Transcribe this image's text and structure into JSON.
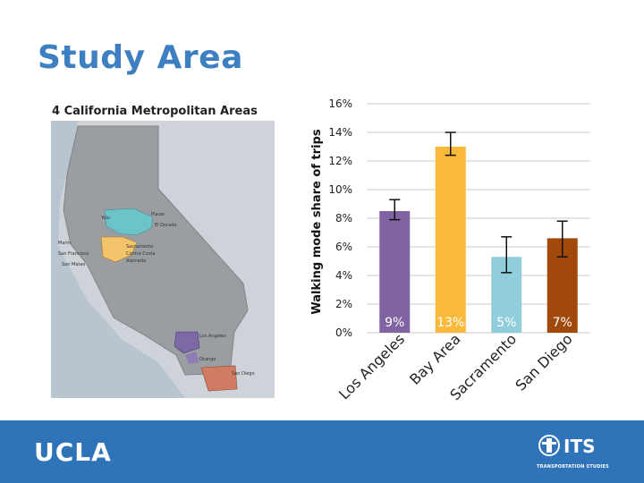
{
  "slide": {
    "title": "Study Area"
  },
  "map": {
    "title": "4 California Metropolitan Areas",
    "labels": [
      "Yolo",
      "Placer",
      "El Dorado",
      "Marin",
      "San Francisco",
      "San Mateo",
      "Sacramento",
      "Contra Costa",
      "Alameda",
      "Los Angeles",
      "Orange",
      "San Diego"
    ]
  },
  "chart_data": {
    "type": "bar",
    "ylabel": "Walking mode share of trips",
    "ylim": [
      0,
      16
    ],
    "yticks": [
      "0%",
      "2%",
      "4%",
      "6%",
      "8%",
      "10%",
      "12%",
      "14%",
      "16%"
    ],
    "categories": [
      "Los Angeles",
      "Bay Area",
      "Sacramento",
      "San Diego"
    ],
    "values": [
      8.5,
      13.0,
      5.3,
      6.6
    ],
    "error_low": [
      7.9,
      12.4,
      4.2,
      5.3
    ],
    "error_high": [
      9.3,
      14.0,
      6.7,
      7.8
    ],
    "data_labels": [
      "9%",
      "13%",
      "5%",
      "7%"
    ],
    "colors": [
      "#8064a2",
      "#f9b93b",
      "#92cddc",
      "#a0490a"
    ],
    "grid": true,
    "legend": "none"
  },
  "footer": {
    "left_logo": "UCLA",
    "right_logo": "ITS",
    "right_logo_sub": "TRANSPORTATION STUDIES"
  }
}
